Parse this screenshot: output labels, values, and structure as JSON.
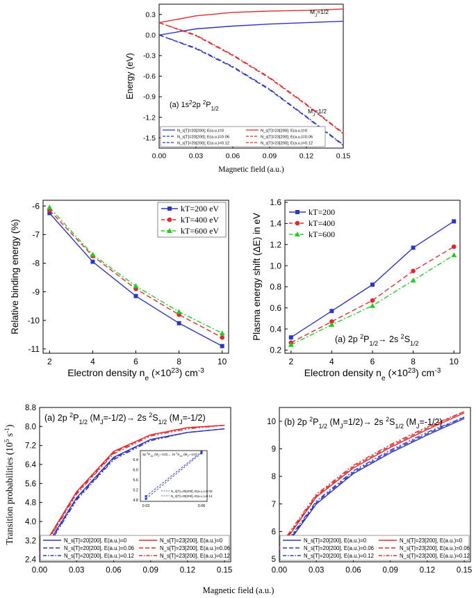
{
  "chart_data": [
    {
      "id": "A",
      "type": "line",
      "ylabel": "Energy (eV)",
      "xlabel": "Magnetic field (a.u.)",
      "annotation": "(a) 1s²2p ²P₁/₂",
      "label_top": "M_J=1/2",
      "label_bottom": "M_J=-1/2",
      "xlim": [
        0,
        0.15
      ],
      "ylim": [
        -1.65,
        0.45
      ],
      "xticks": [
        "0.00",
        "0.03",
        "0.06",
        "0.09",
        "0.12",
        "0.15"
      ],
      "yticks": [
        "0.3",
        "0.0",
        "-0.3",
        "-0.6",
        "-0.9",
        "-1.2",
        "-1.5"
      ],
      "x": [
        0,
        0.03,
        0.06,
        0.09,
        0.12,
        0.15
      ],
      "series": [
        {
          "name": "N_s[T]=20[200]; E(a.u.)=0",
          "color": "#2b35c8",
          "dash": "solid",
          "values": [
            0.0,
            0.09,
            0.13,
            0.16,
            0.18,
            0.2
          ]
        },
        {
          "name": "N_s[T]=20[200]; E(a.u.)=0.06",
          "color": "#2b35c8",
          "dash": "dash",
          "values": [
            0.0,
            -0.2,
            -0.47,
            -0.8,
            -1.2,
            -1.61
          ]
        },
        {
          "name": "N_s[T]=20[200]; E(a.u.)=0.12",
          "color": "#2b35c8",
          "dash": "dashdot",
          "values": [
            0.0,
            -0.19,
            -0.46,
            -0.79,
            -1.19,
            -1.6
          ]
        },
        {
          "name": "N_s[T]=23[200]; E(a.u.)=0",
          "color": "#e8272b",
          "dash": "solid",
          "values": [
            0.18,
            0.28,
            0.33,
            0.35,
            0.36,
            0.38
          ]
        },
        {
          "name": "N_s[T]=23[200]; E(a.u.)=0.06",
          "color": "#e8272b",
          "dash": "dash",
          "values": [
            0.18,
            -0.01,
            -0.3,
            -0.63,
            -1.02,
            -1.44
          ]
        },
        {
          "name": "N_s[T]=23[200]; E(a.u.)=0.12",
          "color": "#e8272b",
          "dash": "dashdot",
          "values": [
            0.18,
            0.0,
            -0.29,
            -0.62,
            -1.01,
            -1.43
          ]
        }
      ]
    },
    {
      "id": "B",
      "type": "line",
      "ylabel": "Relative binding energy (%)",
      "xlabel": "Electron density n_e (×10²³) cm⁻³",
      "xlim": [
        1.7,
        10.3
      ],
      "ylim": [
        -11.15,
        -5.8
      ],
      "xticks": [
        "2",
        "4",
        "6",
        "8",
        "10"
      ],
      "yticks": [
        "-6",
        "-7",
        "-8",
        "-9",
        "-10",
        "-11"
      ],
      "x": [
        2,
        4,
        6,
        8,
        10
      ],
      "series": [
        {
          "name": "kT=200 eV",
          "color": "#2b35c8",
          "dash": "solid",
          "marker": "square",
          "values": [
            -6.25,
            -7.95,
            -9.15,
            -10.1,
            -10.9
          ]
        },
        {
          "name": "kT=400 eV",
          "color": "#e8272b",
          "dash": "dash",
          "marker": "circle",
          "values": [
            -6.15,
            -7.75,
            -8.9,
            -9.8,
            -10.6
          ]
        },
        {
          "name": "kT=600 eV",
          "color": "#1fcf1f",
          "dash": "dashdot",
          "marker": "triangle",
          "values": [
            -6.05,
            -7.7,
            -8.8,
            -9.7,
            -10.45
          ]
        }
      ]
    },
    {
      "id": "C",
      "type": "line",
      "ylabel": "Plasma energy shift (ΔE) in eV",
      "xlabel": "Electron density n_e (×10²³) cm⁻³",
      "annotation": "(a) 2p ²P₁/₂→ 2s ²S₁/₂",
      "xlim": [
        1.7,
        10.3
      ],
      "ylim": [
        0.17,
        1.62
      ],
      "xticks": [
        "2",
        "4",
        "6",
        "8",
        "10"
      ],
      "yticks": [
        "0.2",
        "0.4",
        "0.6",
        "0.8",
        "1.0",
        "1.2",
        "1.4",
        "1.6"
      ],
      "x": [
        2,
        4,
        6,
        8,
        10
      ],
      "series": [
        {
          "name": "kT=200",
          "color": "#2b35c8",
          "dash": "solid",
          "marker": "square",
          "values": [
            0.32,
            0.57,
            0.82,
            1.17,
            1.42
          ]
        },
        {
          "name": "kT=400",
          "color": "#e8272b",
          "dash": "dash",
          "marker": "circle",
          "values": [
            0.27,
            0.47,
            0.67,
            0.95,
            1.18
          ]
        },
        {
          "name": "kT=600",
          "color": "#1fcf1f",
          "dash": "dashdot",
          "marker": "triangle",
          "values": [
            0.25,
            0.44,
            0.62,
            0.86,
            1.1
          ]
        }
      ]
    },
    {
      "id": "D",
      "type": "line",
      "ylabel": "Transition probabilities (10⁵ s⁻¹)",
      "xlabel": "Magnetic field (a.u.)",
      "annotation": "(a) 2p ²P₁/₂ (M_J=-1/2)→ 2s ²S₁/₂ (M_J=-1/2)",
      "xlim": [
        0,
        0.155
      ],
      "ylim": [
        2.3,
        8.8
      ],
      "xticks": [
        "0.00",
        "0.03",
        "0.06",
        "0.09",
        "0.12",
        "0.15"
      ],
      "yticks": [
        "2.4",
        "3.2",
        "4.0",
        "4.8",
        "5.6",
        "6.4",
        "7.2",
        "8.0",
        "8.8"
      ],
      "x": [
        0,
        0.03,
        0.06,
        0.09,
        0.12,
        0.15
      ],
      "series": [
        {
          "name": "N_s[T]=20[200], E(a.u.)=0",
          "color": "#2b35c8",
          "dash": "solid",
          "values": [
            2.5,
            5.0,
            6.7,
            7.45,
            7.75,
            7.9
          ]
        },
        {
          "name": "N_s[T]=20[200], E(a.u.)=0.06",
          "color": "#2b35c8",
          "dash": "dash",
          "values": [
            2.45,
            4.95,
            6.65,
            7.45,
            7.75,
            7.9
          ]
        },
        {
          "name": "N_s[T]=20[200], E(a.u.)=0.12",
          "color": "#2b35c8",
          "dash": "dashdotdot",
          "values": [
            2.4,
            4.9,
            6.6,
            7.4,
            7.75,
            7.9
          ]
        },
        {
          "name": "N_s[T]=23[200], E(a.u.)=0",
          "color": "#e8272b",
          "dash": "solid",
          "values": [
            2.7,
            5.25,
            6.95,
            7.65,
            7.95,
            8.05
          ]
        },
        {
          "name": "N_s[T]=23[200], E(a.u.)=0.06",
          "color": "#e8272b",
          "dash": "dash",
          "values": [
            2.65,
            5.2,
            6.9,
            7.65,
            7.95,
            8.05
          ]
        },
        {
          "name": "N_s[T]=23[200], E(a.u.)=0.12",
          "color": "#e8272b",
          "dash": "dashdotdot",
          "values": [
            2.6,
            5.15,
            6.85,
            7.6,
            7.9,
            8.05
          ]
        }
      ],
      "inset": {
        "title": "2p ²P₁/₂ (M_J=-1/2)→ 2s ²S₁/₂ (M_J=-1/2)",
        "xlim": [
          0.027,
          0.063
        ],
        "ylim": [
          4.75,
          6.75
        ],
        "xticks": [
          "0.03",
          "0.06"
        ],
        "yticks": [
          "4.8",
          "5.2",
          "5.6",
          "6.0",
          "6.4"
        ],
        "x": [
          0.03,
          0.06
        ],
        "series": [
          {
            "name": "N_s[T]=20[200], E(a.u.)=0.06",
            "color": "#2b35c8",
            "dash": "dash",
            "values": [
              4.95,
              6.7
            ]
          },
          {
            "name": "N_s[T]=20[200], E(a.u.)=0.12",
            "color": "#2b35c8",
            "dash": "dashdotdot",
            "values": [
              4.85,
              6.65
            ]
          }
        ]
      }
    },
    {
      "id": "E",
      "type": "line",
      "ylabel": "",
      "xlabel": "",
      "annotation": "(b) 2p ²P₁/₂ (M_J=1/2)→ 2s ²S₁/₂ (M_J=-1/2)",
      "xlim": [
        0,
        0.155
      ],
      "ylim": [
        4.9,
        10.5
      ],
      "xticks": [
        "0.00",
        "0.03",
        "0.06",
        "0.09",
        "0.12",
        "0.15"
      ],
      "yticks": [
        "5",
        "6",
        "7",
        "8",
        "9",
        "10"
      ],
      "x": [
        0,
        0.03,
        0.06,
        0.09,
        0.12,
        0.15
      ],
      "series": [
        {
          "name": "N_s[T]=20[200], E(a.u.)=0",
          "color": "#2b35c8",
          "dash": "solid",
          "values": [
            5.15,
            7.0,
            8.1,
            8.85,
            9.5,
            10.1
          ]
        },
        {
          "name": "N_s[T]=20[200], E(a.u.)=0.06",
          "color": "#2b35c8",
          "dash": "dash",
          "values": [
            5.2,
            7.05,
            8.15,
            8.9,
            9.55,
            10.15
          ]
        },
        {
          "name": "N_s[T]=20[200], E(a.u.)=0.12",
          "color": "#2b35c8",
          "dash": "dashdotdot",
          "values": [
            5.25,
            7.1,
            8.2,
            8.95,
            9.6,
            10.15
          ]
        },
        {
          "name": "N_s[T]=23[200], E(a.u.)=0",
          "color": "#e8272b",
          "dash": "solid",
          "values": [
            5.35,
            7.25,
            8.3,
            9.05,
            9.7,
            10.3
          ]
        },
        {
          "name": "N_s[T]=23[200], E(a.u.)=0.06",
          "color": "#e8272b",
          "dash": "dash",
          "values": [
            5.4,
            7.3,
            8.35,
            9.1,
            9.75,
            10.35
          ]
        },
        {
          "name": "N_s[T]=23[200], E(a.u.)=0.12",
          "color": "#e8272b",
          "dash": "dashdotdot",
          "values": [
            5.45,
            7.35,
            8.4,
            9.15,
            9.8,
            10.35
          ]
        }
      ]
    }
  ],
  "shared_xlabel_bottom": "Magnetic field (a.u.)"
}
